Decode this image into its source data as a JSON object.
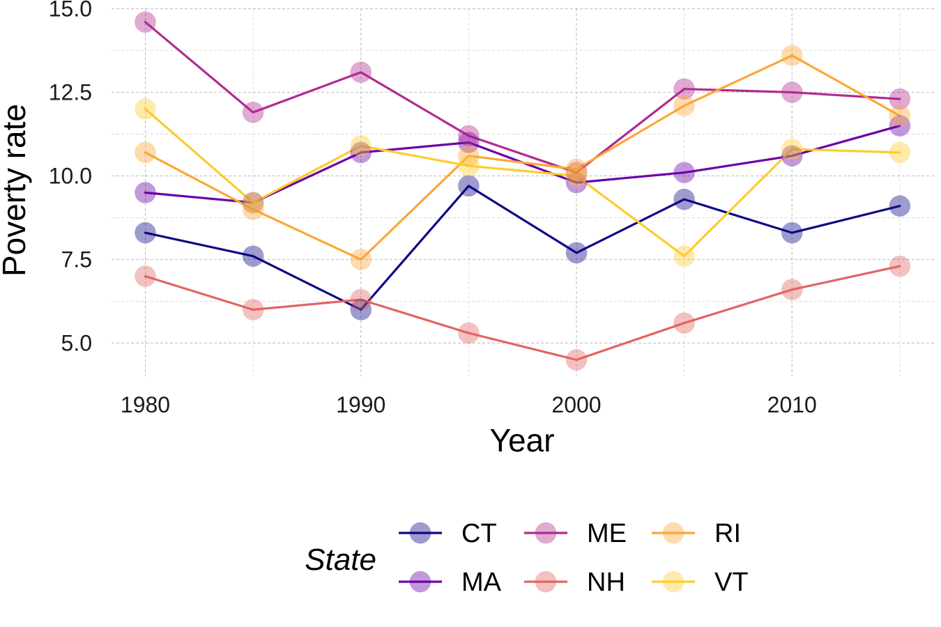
{
  "chart_data": {
    "type": "line",
    "title": "",
    "xlabel": "Year",
    "ylabel": "Poverty rate",
    "xlim": [
      1977,
      2017
    ],
    "ylim": [
      3.8,
      15.0
    ],
    "x_ticks": [
      1980,
      1990,
      2000,
      2010
    ],
    "x_tick_labels": [
      "1980",
      "1990",
      "2000",
      "2010"
    ],
    "x_minor_ticks": [
      1985,
      1995,
      2005,
      2015
    ],
    "y_ticks": [
      5.0,
      7.5,
      10.0,
      12.5,
      15.0
    ],
    "y_tick_labels": [
      "5.0",
      "7.5",
      "10.0",
      "12.5",
      "15.0"
    ],
    "y_minor_ticks": [
      6.25,
      8.75,
      11.25,
      13.75
    ],
    "grid": true,
    "legend_title": "State",
    "legend_position": "bottom",
    "x": [
      1980,
      1985,
      1990,
      1995,
      2000,
      2005,
      2010,
      2015
    ],
    "series": [
      {
        "name": "CT",
        "color": "#0d0887",
        "values": [
          8.3,
          7.6,
          6.0,
          9.7,
          7.7,
          9.3,
          8.3,
          9.1
        ]
      },
      {
        "name": "MA",
        "color": "#6a00a8",
        "values": [
          9.5,
          9.2,
          10.7,
          11.0,
          9.8,
          10.1,
          10.6,
          11.5
        ]
      },
      {
        "name": "ME",
        "color": "#b12a90",
        "values": [
          14.6,
          11.9,
          13.1,
          11.2,
          10.1,
          12.6,
          12.5,
          12.3
        ]
      },
      {
        "name": "NH",
        "color": "#e16462",
        "values": [
          7.0,
          6.0,
          6.3,
          5.3,
          4.5,
          5.6,
          6.6,
          7.3
        ]
      },
      {
        "name": "RI",
        "color": "#fca636",
        "values": [
          10.7,
          9.0,
          7.5,
          10.6,
          10.2,
          12.1,
          13.6,
          11.8
        ]
      },
      {
        "name": "VT",
        "color": "#fccc2c",
        "values": [
          12.0,
          9.2,
          10.9,
          10.3,
          10.0,
          7.6,
          10.8,
          10.7
        ]
      }
    ]
  }
}
